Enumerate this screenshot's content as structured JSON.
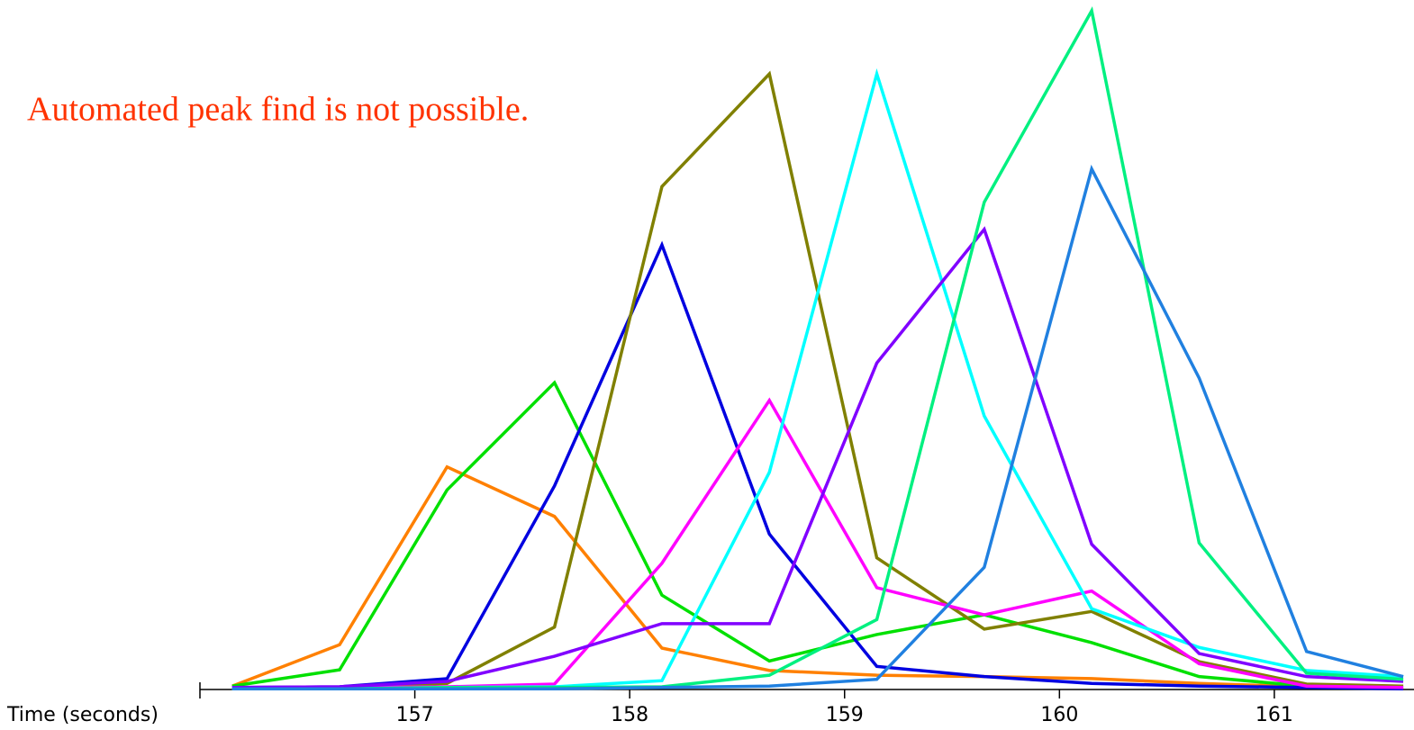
{
  "chart_data": {
    "type": "line",
    "annotation": "Automated peak find is not possible.",
    "x_label": "Time (seconds)",
    "x": [
      156.15,
      156.65,
      157.15,
      157.65,
      158.15,
      158.65,
      159.15,
      159.65,
      160.15,
      160.65,
      161.15,
      161.6
    ],
    "xlim": [
      156.0,
      161.65
    ],
    "xticks": [
      157,
      158,
      159,
      160,
      161
    ],
    "ylim": [
      0,
      100
    ],
    "series": [
      {
        "color": "#ff8000",
        "values": [
          0.5,
          6.6,
          32.8,
          25.5,
          6.1,
          2.8,
          2.1,
          1.9,
          1.6,
          0.9,
          0.4,
          0.1
        ]
      },
      {
        "color": "#00e000",
        "values": [
          0.5,
          2.9,
          29.4,
          45.2,
          13.9,
          4.2,
          8.1,
          11.0,
          6.9,
          1.9,
          0.5,
          0.4
        ]
      },
      {
        "color": "#0000e0",
        "values": [
          0.3,
          0.4,
          1.6,
          30.0,
          65.5,
          22.9,
          3.4,
          1.9,
          0.9,
          0.5,
          0.3,
          0.1
        ]
      },
      {
        "color": "#808000",
        "values": [
          0.1,
          0.3,
          0.9,
          9.2,
          74.1,
          90.7,
          19.4,
          8.9,
          11.5,
          4.1,
          0.8,
          0.5
        ]
      },
      {
        "color": "#ff00ff",
        "values": [
          0.3,
          0.3,
          0.4,
          0.8,
          18.6,
          42.6,
          15.0,
          11.0,
          14.5,
          3.8,
          0.5,
          0.3
        ]
      },
      {
        "color": "#00ffff",
        "values": [
          0.1,
          0.1,
          0.3,
          0.4,
          1.3,
          32.0,
          90.7,
          40.3,
          11.9,
          6.2,
          2.8,
          1.9
        ]
      },
      {
        "color": "#8000ff",
        "values": [
          0.3,
          0.4,
          1.2,
          4.9,
          9.7,
          9.7,
          48.1,
          67.8,
          21.4,
          5.3,
          1.9,
          1.2
        ]
      },
      {
        "color": "#00f080",
        "values": [
          0.1,
          0.1,
          0.3,
          0.3,
          0.4,
          2.1,
          10.3,
          71.8,
          100,
          21.6,
          2.4,
          1.5
        ]
      },
      {
        "color": "#2080e0",
        "values": [
          0.1,
          0.1,
          0.1,
          0.1,
          0.3,
          0.5,
          1.5,
          18.0,
          76.7,
          45.9,
          5.6,
          1.9
        ]
      }
    ]
  }
}
